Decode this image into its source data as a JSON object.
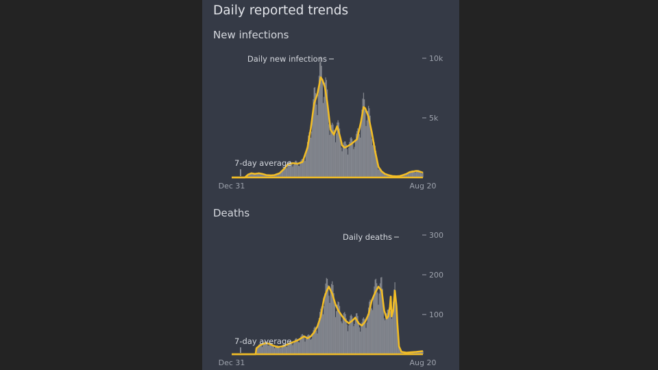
{
  "page": {
    "title": "Daily reported trends"
  },
  "colors": {
    "background": "#232323",
    "panel": "#353a46",
    "bars": "#8c8f96",
    "average_line": "#f2bd26",
    "text": "#d6d9df",
    "muted_text": "#9ea3ad"
  },
  "infections": {
    "section_title": "New infections"
  },
  "deaths": {
    "section_title": "Deaths"
  },
  "chart_data": [
    {
      "type": "area",
      "title": "New infections",
      "x_range": [
        "Dec 31",
        "Aug 20"
      ],
      "ylim": [
        0,
        10000
      ],
      "y_ticks": [
        10000,
        5000
      ],
      "y_tick_labels": [
        "10k",
        "5k"
      ],
      "x_tick_labels": [
        "Dec 31",
        "Aug 20"
      ],
      "annotations": {
        "bars": "Daily new infections",
        "line": "7-day average"
      },
      "series": [
        {
          "name": "Daily new infections",
          "x": [
            0,
            16,
            20,
            24,
            28,
            33,
            37,
            42,
            48,
            52,
            58,
            64,
            68,
            74,
            80,
            86,
            92,
            96,
            100,
            104,
            108,
            110,
            113,
            116,
            120,
            124,
            128,
            132,
            134,
            137,
            140,
            145,
            152,
            157,
            160,
            162,
            166,
            170,
            174,
            178,
            182,
            186,
            190,
            195,
            200,
            204,
            208,
            212,
            216,
            220,
            224,
            228,
            232
          ],
          "values": [
            0,
            0,
            250,
            350,
            300,
            350,
            300,
            200,
            180,
            200,
            350,
            750,
            1100,
            1200,
            1150,
            1300,
            2500,
            4100,
            6200,
            7000,
            8400,
            8200,
            7600,
            6300,
            4000,
            3600,
            4300,
            3300,
            2700,
            2500,
            2600,
            2800,
            3200,
            4700,
            5900,
            5800,
            5100,
            3800,
            2200,
            900,
            500,
            300,
            200,
            120,
            100,
            120,
            200,
            300,
            450,
            500,
            550,
            500,
            400
          ]
        },
        {
          "name": "7-day average",
          "x": [
            0,
            16,
            20,
            24,
            28,
            33,
            37,
            42,
            48,
            52,
            58,
            64,
            68,
            74,
            80,
            86,
            92,
            96,
            100,
            104,
            108,
            110,
            113,
            116,
            120,
            124,
            128,
            132,
            134,
            137,
            140,
            145,
            152,
            157,
            160,
            162,
            166,
            170,
            174,
            178,
            182,
            186,
            190,
            195,
            200,
            204,
            208,
            212,
            216,
            220,
            224,
            228,
            232
          ],
          "values": [
            0,
            0,
            250,
            350,
            300,
            350,
            300,
            200,
            180,
            200,
            350,
            750,
            1100,
            1200,
            1150,
            1300,
            2500,
            4100,
            6200,
            7000,
            8400,
            8200,
            7600,
            6300,
            4000,
            3600,
            4300,
            3300,
            2700,
            2500,
            2600,
            2800,
            3200,
            4700,
            5900,
            5800,
            5100,
            3800,
            2200,
            900,
            500,
            300,
            200,
            120,
            100,
            120,
            200,
            300,
            450,
            500,
            550,
            500,
            400
          ]
        }
      ],
      "grid": false
    },
    {
      "type": "area",
      "title": "Deaths",
      "x_range": [
        "Dec 31",
        "Aug 20"
      ],
      "ylim": [
        0,
        300
      ],
      "y_ticks": [
        300,
        200,
        100
      ],
      "y_tick_labels": [
        "300",
        "200",
        "100"
      ],
      "x_tick_labels": [
        "Dec 31",
        "Aug 20"
      ],
      "annotations": {
        "bars": "Daily deaths",
        "line": "7-day average"
      },
      "series": [
        {
          "name": "Daily deaths",
          "x": [
            0,
            29,
            30,
            34,
            38,
            42,
            46,
            50,
            56,
            62,
            68,
            74,
            80,
            84,
            88,
            92,
            96,
            100,
            104,
            108,
            112,
            115,
            118,
            122,
            126,
            130,
            134,
            138,
            142,
            146,
            150,
            154,
            158,
            162,
            166,
            170,
            174,
            178,
            182,
            185,
            188,
            190,
            192,
            193,
            194,
            196,
            198,
            200,
            201,
            203,
            206,
            212,
            218,
            224,
            232
          ],
          "values": [
            0,
            0,
            15,
            22,
            26,
            28,
            26,
            22,
            18,
            20,
            25,
            30,
            35,
            40,
            45,
            40,
            45,
            55,
            70,
            95,
            140,
            158,
            170,
            152,
            125,
            108,
            96,
            85,
            78,
            84,
            92,
            78,
            72,
            82,
            100,
            135,
            155,
            170,
            160,
            110,
            90,
            95,
            120,
            145,
            95,
            110,
            160,
            120,
            80,
            20,
            6,
            4,
            5,
            6,
            8
          ]
        },
        {
          "name": "7-day average",
          "x": [
            0,
            29,
            30,
            34,
            38,
            42,
            46,
            50,
            56,
            62,
            68,
            74,
            80,
            84,
            88,
            92,
            96,
            100,
            104,
            108,
            112,
            115,
            118,
            122,
            126,
            130,
            134,
            138,
            142,
            146,
            150,
            154,
            158,
            162,
            166,
            170,
            174,
            178,
            182,
            185,
            188,
            190,
            192,
            193,
            194,
            196,
            198,
            200,
            201,
            203,
            206,
            212,
            218,
            224,
            232
          ],
          "values": [
            0,
            0,
            15,
            22,
            26,
            28,
            26,
            22,
            18,
            20,
            25,
            30,
            35,
            40,
            45,
            40,
            45,
            55,
            70,
            95,
            140,
            158,
            170,
            152,
            125,
            108,
            96,
            85,
            78,
            84,
            92,
            78,
            72,
            82,
            100,
            135,
            155,
            170,
            160,
            110,
            90,
            95,
            120,
            145,
            95,
            110,
            160,
            120,
            80,
            20,
            6,
            4,
            5,
            6,
            8
          ]
        }
      ],
      "grid": false
    }
  ]
}
